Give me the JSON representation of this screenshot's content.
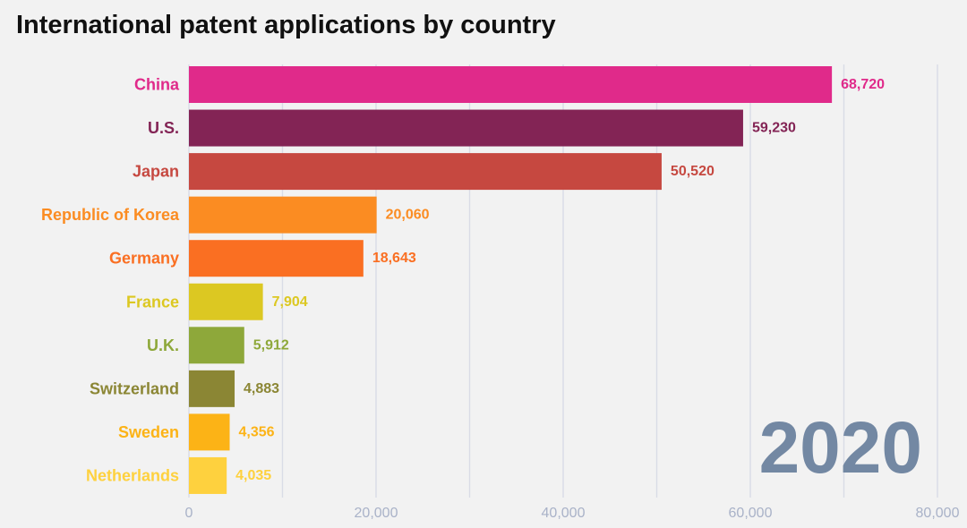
{
  "chart_data": {
    "type": "bar",
    "orientation": "horizontal",
    "title": "International patent applications by country",
    "categories": [
      "China",
      "U.S.",
      "Japan",
      "Republic of Korea",
      "Germany",
      "France",
      "U.K.",
      "Switzerland",
      "Sweden",
      "Netherlands"
    ],
    "values": [
      68720,
      59230,
      50520,
      20060,
      18643,
      7904,
      5912,
      4883,
      4356,
      4035
    ],
    "value_labels": [
      "68,720",
      "59,230",
      "50,520",
      "20,060",
      "18,643",
      "7,904",
      "5,912",
      "4,883",
      "4,356",
      "4,035"
    ],
    "colors": [
      "#e02a8a",
      "#832455",
      "#c64840",
      "#fb8c22",
      "#fa6f22",
      "#dcc822",
      "#8ea83a",
      "#8b8634",
      "#fcb316",
      "#fed13e"
    ],
    "xlim": [
      0,
      80000
    ],
    "xticks": [
      0,
      20000,
      40000,
      60000,
      80000
    ],
    "xtick_labels": [
      "0",
      "20,000",
      "40,000",
      "60,000",
      "80,000"
    ],
    "minor_gridlines": [
      10000,
      30000,
      50000,
      70000
    ],
    "grid": true,
    "year": "2020",
    "xlabel": "",
    "ylabel": ""
  }
}
